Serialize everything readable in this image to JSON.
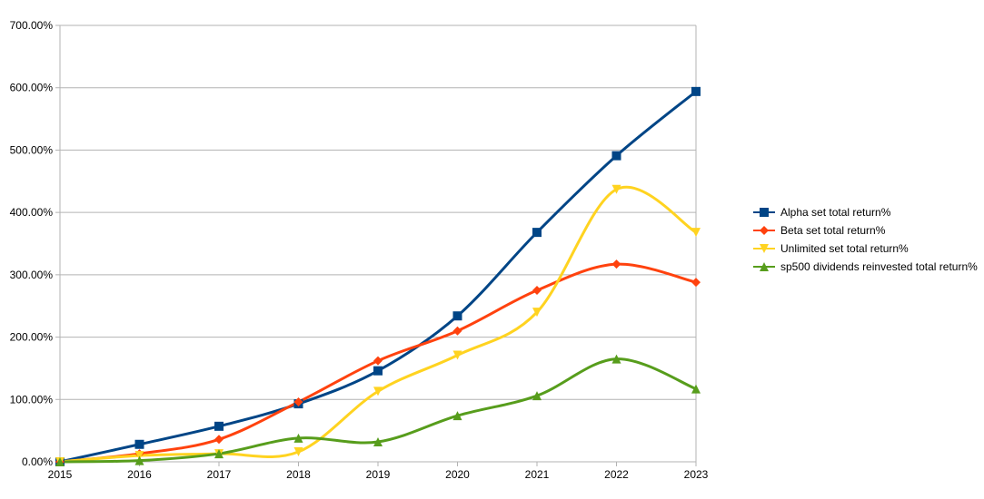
{
  "chart_data": {
    "type": "line",
    "title": "",
    "xlabel": "",
    "ylabel": "",
    "x": [
      2015,
      2016,
      2017,
      2018,
      2019,
      2020,
      2021,
      2022,
      2023
    ],
    "x_tick_labels": [
      "2015",
      "2016",
      "2017",
      "2018",
      "2019",
      "2020",
      "2021",
      "2022",
      "2023"
    ],
    "ylim": [
      0,
      700
    ],
    "y_ticks": [
      0,
      100,
      200,
      300,
      400,
      500,
      600,
      700
    ],
    "y_tick_labels": [
      "0.00%",
      "100.00%",
      "200.00%",
      "300.00%",
      "400.00%",
      "500.00%",
      "600.00%",
      "700.00%"
    ],
    "grid": "horizontal",
    "smooth": true,
    "legend_position": "right",
    "series": [
      {
        "name": "Alpha set total return%",
        "color": "#004586",
        "marker": "square",
        "values": [
          0,
          28,
          57,
          93,
          146,
          234,
          368,
          491,
          594
        ]
      },
      {
        "name": "Beta set total return%",
        "color": "#ff420e",
        "marker": "diamond",
        "values": [
          0,
          13,
          36,
          96,
          162,
          210,
          275,
          317,
          288
        ]
      },
      {
        "name": "Unlimited set total return%",
        "color": "#ffd320",
        "marker": "triangle-down",
        "values": [
          0,
          10,
          13,
          16,
          113,
          171,
          240,
          437,
          368
        ]
      },
      {
        "name": "sp500 dividends reinvested total return%",
        "color": "#579d1c",
        "marker": "triangle-up",
        "values": [
          0,
          2,
          13,
          38,
          32,
          74,
          106,
          165,
          117
        ]
      }
    ]
  }
}
